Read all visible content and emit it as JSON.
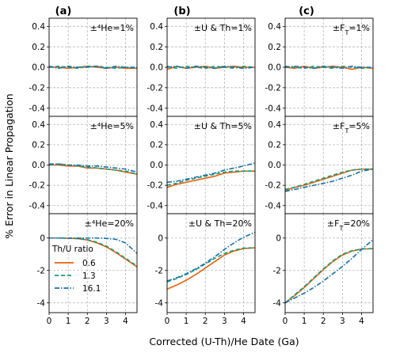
{
  "figure": {
    "xlabel": "Corrected (U-Th)/He Date (Ga)",
    "ylabel": "% Error in Linear Propagation",
    "panel_labels": [
      "(a)",
      "(b)",
      "(c)"
    ]
  },
  "legend": {
    "title": "Th/U ratio",
    "entries": [
      {
        "label": "0.6",
        "color": "#e3630f",
        "dash": "solid"
      },
      {
        "label": "1.3",
        "color": "#1f9a77",
        "dash": "dashed"
      },
      {
        "label": "16.1",
        "color": "#1b6fa6",
        "dash": "dashdot"
      }
    ]
  },
  "chart_data": [
    {
      "type": "line",
      "panel": "a1",
      "annotation": "±⁴He=1%",
      "xlim": [
        0,
        4.6
      ],
      "ylim": [
        -0.48,
        0.48
      ],
      "yticks": [
        "0.4",
        "0.2",
        "0.0",
        "-0.2",
        "-0.4"
      ],
      "ytick_values": [
        0.4,
        0.2,
        0,
        -0.2,
        -0.4
      ],
      "x": [
        0,
        0.5,
        1,
        1.5,
        2,
        2.5,
        3,
        3.5,
        4,
        4.6
      ],
      "series": [
        {
          "name": "0.6",
          "values": [
            0,
            0,
            -0.01,
            0,
            0.01,
            0,
            -0.01,
            0,
            -0.01,
            -0.01
          ]
        },
        {
          "name": "1.3",
          "values": [
            0,
            0.01,
            0,
            -0.01,
            0.01,
            0.01,
            0,
            -0.01,
            0,
            -0.01
          ]
        },
        {
          "name": "16.1",
          "values": [
            0.01,
            -0.01,
            0.01,
            0,
            0,
            0.01,
            -0.01,
            0.01,
            0,
            0
          ]
        }
      ]
    },
    {
      "type": "line",
      "panel": "b1",
      "annotation": "±U & Th=1%",
      "xlim": [
        0,
        4.6
      ],
      "ylim": [
        -0.48,
        0.48
      ],
      "yticks": [
        "0.4",
        "0.2",
        "0.0",
        "-0.2",
        "-0.4"
      ],
      "ytick_values": [
        0.4,
        0.2,
        0,
        -0.2,
        -0.4
      ],
      "x": [
        0,
        0.5,
        1,
        1.5,
        2,
        2.5,
        3,
        3.5,
        4,
        4.6
      ],
      "series": [
        {
          "name": "0.6",
          "values": [
            -0.02,
            0.01,
            -0.01,
            0,
            0.01,
            -0.01,
            0,
            0.01,
            0,
            0
          ]
        },
        {
          "name": "1.3",
          "values": [
            0.01,
            -0.01,
            0.01,
            0,
            -0.01,
            0.01,
            0,
            -0.01,
            0.01,
            0
          ]
        },
        {
          "name": "16.1",
          "values": [
            0,
            0.01,
            -0.01,
            0.01,
            0,
            -0.01,
            0.01,
            0,
            -0.01,
            0
          ]
        }
      ]
    },
    {
      "type": "line",
      "panel": "c1",
      "annotation": "±F_T=1%",
      "xlim": [
        0,
        4.6
      ],
      "ylim": [
        -0.48,
        0.48
      ],
      "yticks": [
        "0.4",
        "0.2",
        "0.0",
        "-0.2",
        "-0.4"
      ],
      "ytick_values": [
        0.4,
        0.2,
        0,
        -0.2,
        -0.4
      ],
      "x": [
        0,
        0.5,
        1,
        1.5,
        2,
        2.5,
        3,
        3.5,
        4,
        4.6
      ],
      "series": [
        {
          "name": "0.6",
          "values": [
            0,
            -0.01,
            0.01,
            -0.01,
            0,
            0.01,
            0,
            -0.02,
            0,
            -0.01
          ]
        },
        {
          "name": "1.3",
          "values": [
            0.01,
            0,
            -0.01,
            0.01,
            0,
            -0.01,
            0.01,
            0,
            -0.01,
            0
          ]
        },
        {
          "name": "16.1",
          "values": [
            0,
            0.01,
            0,
            -0.01,
            0.01,
            0,
            -0.01,
            0.01,
            0,
            0
          ]
        }
      ]
    },
    {
      "type": "line",
      "panel": "a2",
      "annotation": "±⁴He=5%",
      "xlim": [
        0,
        4.6
      ],
      "ylim": [
        -0.48,
        0.48
      ],
      "yticks": [
        "0.4",
        "0.2",
        "0.0",
        "-0.2",
        "-0.4"
      ],
      "ytick_values": [
        0.4,
        0.2,
        0,
        -0.2,
        -0.4
      ],
      "x": [
        0,
        0.5,
        1,
        1.5,
        2,
        2.5,
        3,
        3.5,
        4,
        4.6
      ],
      "series": [
        {
          "name": "0.6",
          "values": [
            0,
            0,
            -0.01,
            -0.01,
            -0.03,
            -0.03,
            -0.04,
            -0.05,
            -0.07,
            -0.09
          ]
        },
        {
          "name": "1.3",
          "values": [
            0,
            0.01,
            0,
            -0.01,
            -0.02,
            -0.03,
            -0.04,
            -0.05,
            -0.06,
            -0.09
          ]
        },
        {
          "name": "16.1",
          "values": [
            0.01,
            0.01,
            0,
            0,
            -0.01,
            -0.01,
            -0.02,
            -0.03,
            -0.04,
            -0.07
          ]
        }
      ]
    },
    {
      "type": "line",
      "panel": "b2",
      "annotation": "±U & Th=5%",
      "xlim": [
        0,
        4.6
      ],
      "ylim": [
        -0.48,
        0.48
      ],
      "yticks": [
        "0.4",
        "0.2",
        "0.0",
        "-0.2",
        "-0.4"
      ],
      "ytick_values": [
        0.4,
        0.2,
        0,
        -0.2,
        -0.4
      ],
      "x": [
        0,
        0.5,
        1,
        1.5,
        2,
        2.5,
        3,
        3.5,
        4,
        4.6
      ],
      "series": [
        {
          "name": "0.6",
          "values": [
            -0.22,
            -0.19,
            -0.17,
            -0.15,
            -0.13,
            -0.11,
            -0.08,
            -0.07,
            -0.06,
            -0.06
          ]
        },
        {
          "name": "1.3",
          "values": [
            -0.2,
            -0.18,
            -0.15,
            -0.13,
            -0.11,
            -0.09,
            -0.07,
            -0.06,
            -0.06,
            -0.06
          ]
        },
        {
          "name": "16.1",
          "values": [
            -0.17,
            -0.16,
            -0.14,
            -0.12,
            -0.1,
            -0.08,
            -0.05,
            -0.03,
            -0.01,
            0.02
          ]
        }
      ]
    },
    {
      "type": "line",
      "panel": "c2",
      "annotation": "±F_T=5%",
      "xlim": [
        0,
        4.6
      ],
      "ylim": [
        -0.48,
        0.48
      ],
      "yticks": [
        "0.4",
        "0.2",
        "0.0",
        "-0.2",
        "-0.4"
      ],
      "ytick_values": [
        0.4,
        0.2,
        0,
        -0.2,
        -0.4
      ],
      "x": [
        0,
        0.5,
        1,
        1.5,
        2,
        2.5,
        3,
        3.5,
        4,
        4.6
      ],
      "series": [
        {
          "name": "0.6",
          "values": [
            -0.25,
            -0.22,
            -0.2,
            -0.17,
            -0.14,
            -0.11,
            -0.08,
            -0.05,
            -0.04,
            -0.04
          ]
        },
        {
          "name": "1.3",
          "values": [
            -0.24,
            -0.22,
            -0.19,
            -0.16,
            -0.13,
            -0.1,
            -0.07,
            -0.05,
            -0.04,
            -0.04
          ]
        },
        {
          "name": "16.1",
          "values": [
            -0.26,
            -0.24,
            -0.22,
            -0.2,
            -0.18,
            -0.16,
            -0.13,
            -0.1,
            -0.06,
            -0.04
          ]
        }
      ]
    },
    {
      "type": "line",
      "panel": "a3",
      "annotation": "±⁴He=20%",
      "xlim": [
        0,
        4.6
      ],
      "ylim": [
        -4.6,
        1.5
      ],
      "yticks": [
        "0",
        "-2",
        "-4"
      ],
      "ytick_values": [
        0,
        -2,
        -4
      ],
      "x": [
        0,
        0.5,
        1,
        1.5,
        2,
        2.5,
        3,
        3.5,
        4,
        4.6
      ],
      "series": [
        {
          "name": "0.6",
          "values": [
            0,
            0,
            -0.01,
            -0.04,
            -0.12,
            -0.3,
            -0.55,
            -0.9,
            -1.3,
            -1.78
          ]
        },
        {
          "name": "1.3",
          "values": [
            0,
            0,
            -0.01,
            -0.03,
            -0.1,
            -0.26,
            -0.5,
            -0.85,
            -1.25,
            -1.72
          ]
        },
        {
          "name": "16.1",
          "values": [
            0,
            0,
            0,
            0,
            0,
            0,
            -0.02,
            -0.08,
            -0.3,
            -0.95
          ]
        }
      ]
    },
    {
      "type": "line",
      "panel": "b3",
      "annotation": "±U & Th=20%",
      "xlim": [
        0,
        4.6
      ],
      "ylim": [
        -4.6,
        1.5
      ],
      "yticks": [
        "0",
        "-2",
        "-4"
      ],
      "ytick_values": [
        0,
        -2,
        -4
      ],
      "x": [
        0,
        0.5,
        1,
        1.5,
        2,
        2.5,
        3,
        3.5,
        4,
        4.6
      ],
      "series": [
        {
          "name": "0.6",
          "values": [
            -3.15,
            -2.9,
            -2.6,
            -2.25,
            -1.85,
            -1.45,
            -1.05,
            -0.8,
            -0.65,
            -0.6
          ]
        },
        {
          "name": "1.3",
          "values": [
            -2.7,
            -2.5,
            -2.25,
            -1.95,
            -1.6,
            -1.25,
            -0.95,
            -0.75,
            -0.62,
            -0.6
          ]
        },
        {
          "name": "16.1",
          "values": [
            -2.65,
            -2.45,
            -2.2,
            -1.9,
            -1.55,
            -1.15,
            -0.7,
            -0.3,
            0.05,
            0.35
          ]
        }
      ]
    },
    {
      "type": "line",
      "panel": "c3",
      "annotation": "±F_T=20%",
      "xlim": [
        0,
        4.6
      ],
      "ylim": [
        -4.6,
        1.5
      ],
      "yticks": [
        "0",
        "-2",
        "-4"
      ],
      "ytick_values": [
        0,
        -2,
        -4
      ],
      "x": [
        0,
        0.5,
        1,
        1.5,
        2,
        2.5,
        3,
        3.5,
        4,
        4.6
      ],
      "series": [
        {
          "name": "0.6",
          "values": [
            -4.0,
            -3.55,
            -3.05,
            -2.5,
            -1.95,
            -1.45,
            -1.05,
            -0.8,
            -0.68,
            -0.65
          ]
        },
        {
          "name": "1.3",
          "values": [
            -4.0,
            -3.5,
            -3.0,
            -2.45,
            -1.9,
            -1.4,
            -1.0,
            -0.78,
            -0.68,
            -0.65
          ]
        },
        {
          "name": "16.1",
          "values": [
            -4.0,
            -3.7,
            -3.4,
            -3.05,
            -2.65,
            -2.2,
            -1.75,
            -1.25,
            -0.7,
            -0.1
          ]
        }
      ]
    }
  ]
}
